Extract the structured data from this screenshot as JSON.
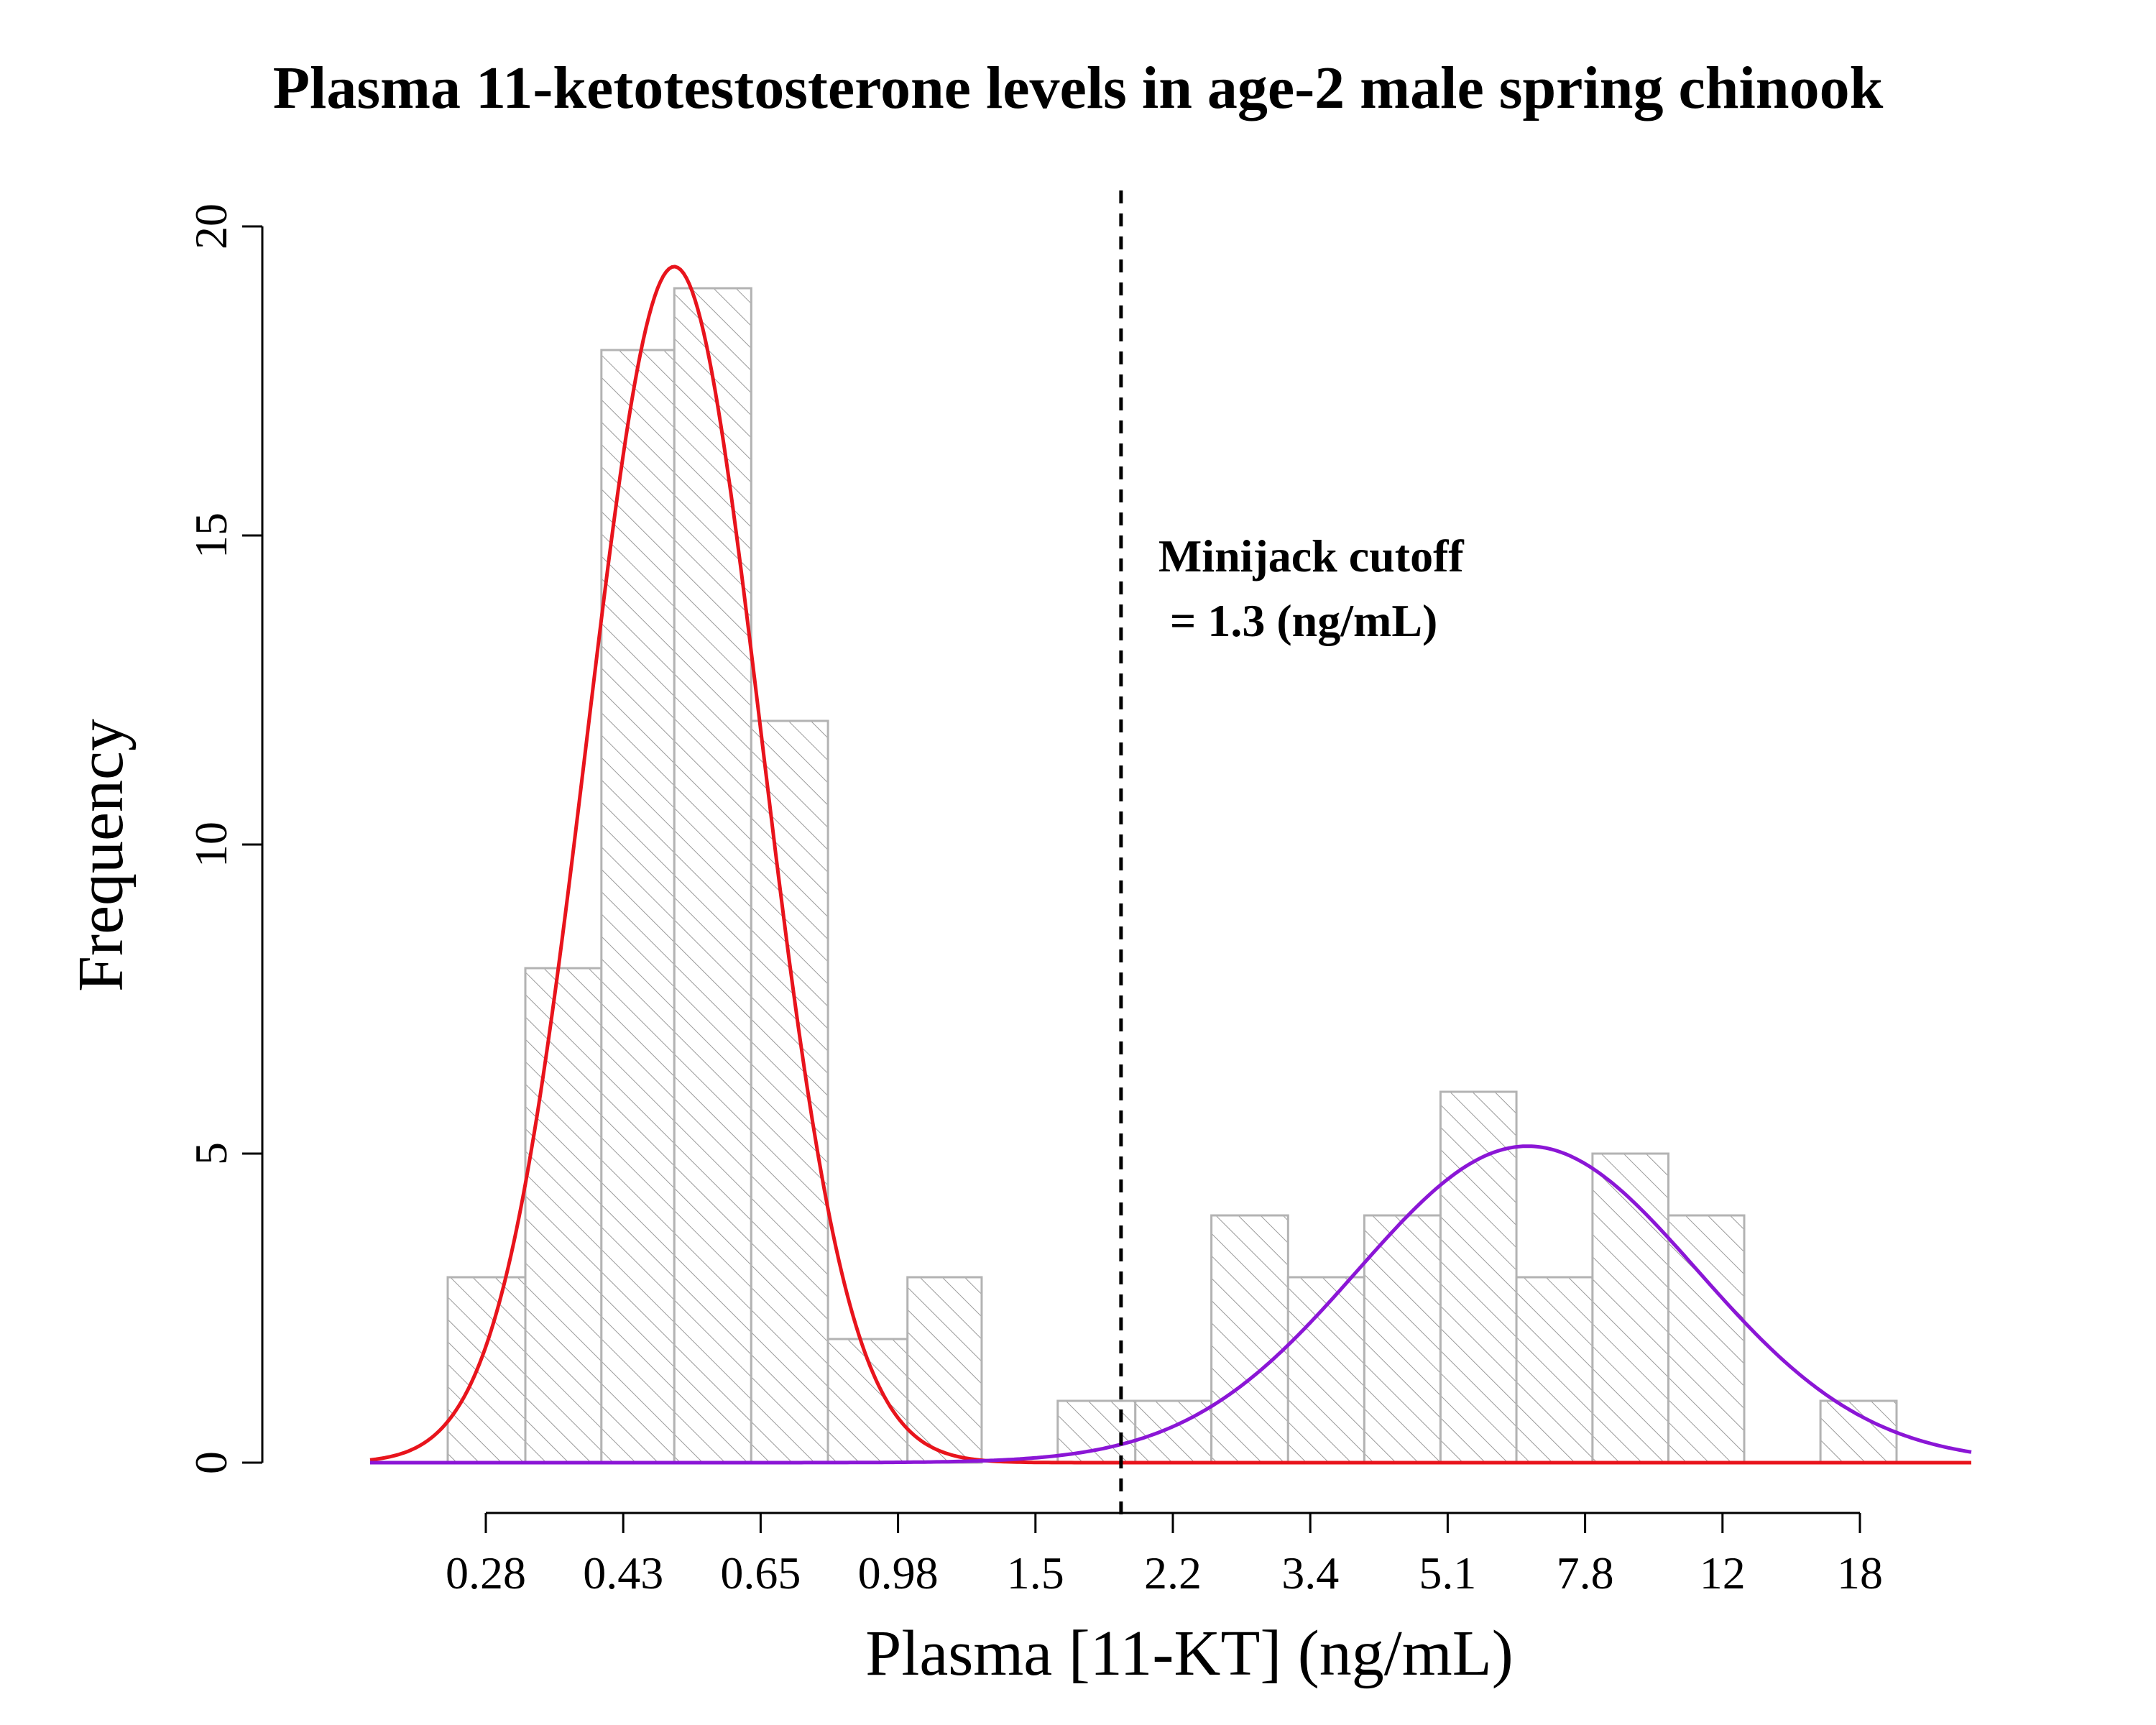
{
  "chart_data": {
    "type": "bar",
    "title": "Plasma 11-ketotestosterone levels in age-2 male spring chinook",
    "xlabel": "Plasma [11-KT] (ng/mL)",
    "ylabel": "Frequency",
    "x_scale": "log",
    "ylim": [
      0,
      20
    ],
    "y_ticks": [
      0,
      5,
      10,
      15,
      20
    ],
    "x_ticks": [
      "0.28",
      "0.43",
      "0.65",
      "0.98",
      "1.5",
      "2.2",
      "3.4",
      "5.1",
      "7.8",
      "12",
      "18"
    ],
    "bins": [
      {
        "x0": 0.22,
        "x1": 0.27,
        "count": 3
      },
      {
        "x0": 0.27,
        "x1": 0.33,
        "count": 8
      },
      {
        "x0": 0.33,
        "x1": 0.4,
        "count": 18
      },
      {
        "x0": 0.4,
        "x1": 0.49,
        "count": 19
      },
      {
        "x0": 0.49,
        "x1": 0.6,
        "count": 12
      },
      {
        "x0": 0.6,
        "x1": 0.74,
        "count": 2
      },
      {
        "x0": 0.74,
        "x1": 0.9,
        "count": 3
      },
      {
        "x0": 0.9,
        "x1": 1.1,
        "count": 0
      },
      {
        "x0": 1.1,
        "x1": 1.35,
        "count": 1
      },
      {
        "x0": 1.35,
        "x1": 1.65,
        "count": 1
      },
      {
        "x0": 1.65,
        "x1": 2.02,
        "count": 4
      },
      {
        "x0": 2.02,
        "x1": 2.47,
        "count": 3
      },
      {
        "x0": 2.47,
        "x1": 3.02,
        "count": 4
      },
      {
        "x0": 3.02,
        "x1": 3.69,
        "count": 6
      },
      {
        "x0": 3.69,
        "x1": 4.51,
        "count": 3
      },
      {
        "x0": 4.51,
        "x1": 5.51,
        "count": 5
      },
      {
        "x0": 5.51,
        "x1": 6.73,
        "count": 4
      },
      {
        "x0": 6.73,
        "x1": 8.23,
        "count": 0
      },
      {
        "x0": 8.23,
        "x1": 10.06,
        "count": 1
      }
    ],
    "fits": [
      {
        "mean": 0.4,
        "sd_log10": 0.1,
        "peak": 19.35,
        "color": "#e8141c"
      },
      {
        "mean": 3.8,
        "sd_log10": 0.195,
        "peak": 5.12,
        "color": "#8b16d6"
      }
    ],
    "cutoff": {
      "value": 1.3,
      "label_line1": "Minijack cutoff",
      "label_line2": " = 1.3 (ng/mL)"
    },
    "bar_style": {
      "fill": "#ffffff",
      "stroke": "#b3b3b3",
      "hatch": "#9a9a9a"
    }
  }
}
